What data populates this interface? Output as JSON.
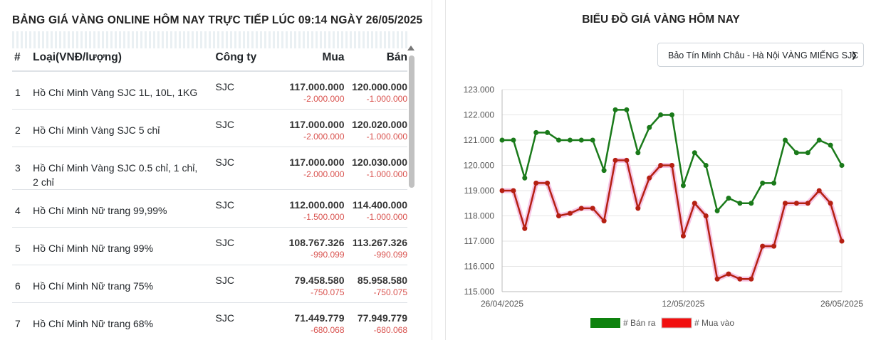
{
  "table": {
    "title": "BẢNG GIÁ VÀNG ONLINE HÔM NAY TRỰC TIẾP LÚC 09:14 NGÀY 26/05/2025",
    "headers": {
      "idx": "#",
      "type": "Loại(VNĐ/lượng)",
      "company": "Công ty",
      "buy": "Mua",
      "sell": "Bán"
    },
    "rows": [
      {
        "idx": "1",
        "type": "Hồ Chí Minh Vàng SJC 1L, 10L, 1KG",
        "company": "SJC",
        "buy": "117.000.000",
        "buy_change": "-2.000.000",
        "sell": "120.000.000",
        "sell_change": "-1.000.000"
      },
      {
        "idx": "2",
        "type": "Hồ Chí Minh Vàng SJC 5 chỉ",
        "company": "SJC",
        "buy": "117.000.000",
        "buy_change": "-2.000.000",
        "sell": "120.020.000",
        "sell_change": "-1.000.000"
      },
      {
        "idx": "3",
        "type": "Hồ Chí Minh Vàng SJC 0.5 chỉ, 1 chỉ, 2 chỉ",
        "company": "SJC",
        "buy": "117.000.000",
        "buy_change": "-2.000.000",
        "sell": "120.030.000",
        "sell_change": "-1.000.000"
      },
      {
        "idx": "4",
        "type": "Hồ Chí Minh Nữ trang 99,99%",
        "company": "SJC",
        "buy": "112.000.000",
        "buy_change": "-1.500.000",
        "sell": "114.400.000",
        "sell_change": "-1.000.000"
      },
      {
        "idx": "5",
        "type": "Hồ Chí Minh Nữ trang 99%",
        "company": "SJC",
        "buy": "108.767.326",
        "buy_change": "-990.099",
        "sell": "113.267.326",
        "sell_change": "-990.099"
      },
      {
        "idx": "6",
        "type": "Hồ Chí Minh Nữ trang 75%",
        "company": "SJC",
        "buy": "79.458.580",
        "buy_change": "-750.075",
        "sell": "85.958.580",
        "sell_change": "-750.075"
      },
      {
        "idx": "7",
        "type": "Hồ Chí Minh Nữ trang 68%",
        "company": "SJC",
        "buy": "71.449.779",
        "buy_change": "-680.068",
        "sell": "77.949.779",
        "sell_change": "-680.068"
      }
    ]
  },
  "chart_panel": {
    "title": "BIỂU ĐỒ GIÁ VÀNG HÔM NAY",
    "select_value": "Bảo Tín Minh Châu - Hà Nội VÀNG MIẾNG SJC"
  },
  "chart_data": {
    "type": "line",
    "x_ticks": [
      "26/04/2025",
      "12/05/2025",
      "26/05/2025"
    ],
    "y_ticks": [
      "115.000",
      "116.000",
      "117.000",
      "118.000",
      "119.000",
      "120.000",
      "121.000",
      "122.000",
      "123.000"
    ],
    "ylim": [
      115000,
      123000
    ],
    "grid": true,
    "legend_position": "bottom",
    "series": [
      {
        "name": "# Bán ra",
        "color": "#178217",
        "values": [
          121000,
          121000,
          119500,
          121300,
          121300,
          121000,
          121000,
          121000,
          121000,
          119800,
          122200,
          122200,
          120500,
          121500,
          122000,
          122000,
          119200,
          120500,
          120000,
          118200,
          118700,
          118500,
          118500,
          119300,
          119300,
          121000,
          120500,
          120500,
          121000,
          120800,
          120000
        ]
      },
      {
        "name": "# Mua vào",
        "color": "#e8200d",
        "values": [
          119000,
          119000,
          117500,
          119300,
          119300,
          118000,
          118100,
          118300,
          118300,
          117800,
          120200,
          120200,
          118300,
          119500,
          120000,
          120000,
          117200,
          118500,
          118000,
          115500,
          115700,
          115500,
          115500,
          116800,
          116800,
          118500,
          118500,
          118500,
          119000,
          118500,
          117000
        ]
      }
    ]
  }
}
